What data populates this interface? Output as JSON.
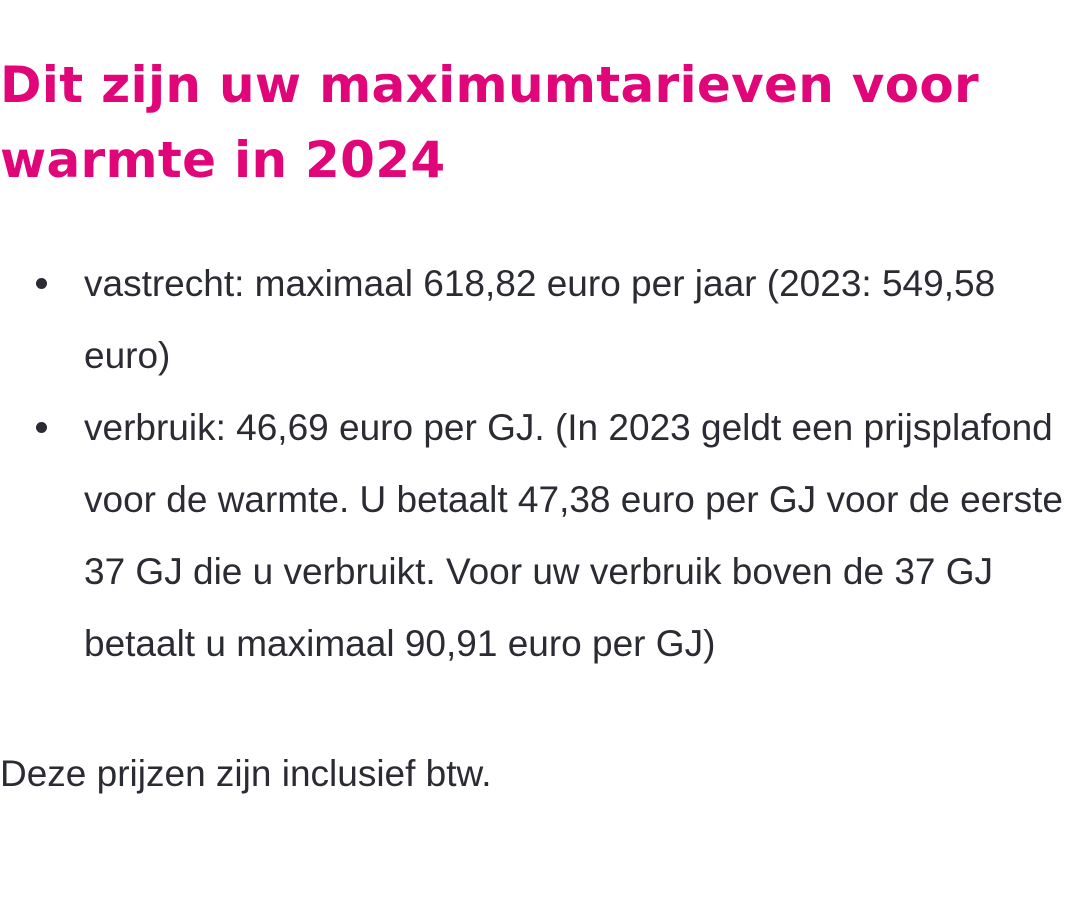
{
  "heading": "Dit zijn uw maximumtarieven voor warmte in 2024",
  "bullets": [
    "vastrecht: maximaal 618,82 euro per jaar (2023: 549,58 euro)",
    "verbruik: 46,69 euro per GJ. (In 2023 geldt een prijsplafond voor de warmte. U betaalt 47,38 euro per GJ voor de eerste 37 GJ die u verbruikt. Voor uw verbruik boven de 37 GJ betaalt u maximaal 90,91 euro per GJ)"
  ],
  "note": "Deze prijzen zijn inclusief btw.",
  "colors": {
    "heading": "#e0067a",
    "text": "#2b2b33",
    "background": "#ffffff"
  }
}
